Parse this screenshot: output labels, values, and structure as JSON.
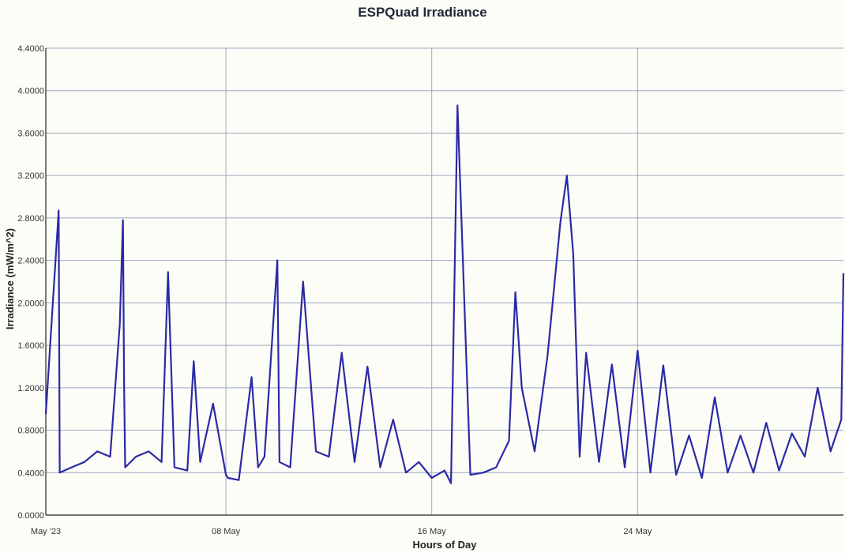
{
  "chart_data": {
    "type": "line",
    "title": "ESPQuad Irradiance",
    "xlabel": "Hours of Day",
    "ylabel": "Irradiance (mW/m^2)",
    "ylim": [
      0,
      4.4
    ],
    "y_ticks": [
      "0.0000",
      "0.4000",
      "0.8000",
      "1.2000",
      "1.6000",
      "2.0000",
      "2.4000",
      "2.8000",
      "3.2000",
      "3.6000",
      "4.0000",
      "4.4000"
    ],
    "x_range_days": [
      "2023-05-01",
      "2023-06-01"
    ],
    "x_ticks": [
      {
        "date": "2023-05-01",
        "label": "May '23"
      },
      {
        "date": "2023-05-08",
        "label": "08 May"
      },
      {
        "date": "2023-05-16",
        "label": "16 May"
      },
      {
        "date": "2023-05-24",
        "label": "24 May"
      }
    ],
    "grid": true,
    "legend": "none",
    "color": "#2a2aa6",
    "series": [
      {
        "x": [
          "2023-05-01",
          "2023-05-01T12:00",
          "2023-05-01T13:00",
          "2023-05-02",
          "2023-05-02T12:00",
          "2023-05-03",
          "2023-05-03T12:00",
          "2023-05-03T21:00",
          "2023-05-04",
          "2023-05-04T01:00",
          "2023-05-04T02:00",
          "2023-05-04T12:00",
          "2023-05-05",
          "2023-05-05T12:00",
          "2023-05-05T18:00",
          "2023-05-06",
          "2023-05-06T12:00",
          "2023-05-06T18:00",
          "2023-05-07",
          "2023-05-07T12:00",
          "2023-05-08",
          "2023-05-08T02:00",
          "2023-05-08T12:00",
          "2023-05-09",
          "2023-05-09T06:00",
          "2023-05-09T12:00",
          "2023-05-10",
          "2023-05-10T02:00",
          "2023-05-10T12:00",
          "2023-05-11",
          "2023-05-11T12:00",
          "2023-05-12",
          "2023-05-12T12:00",
          "2023-05-13",
          "2023-05-13T12:00",
          "2023-05-14",
          "2023-05-14T12:00",
          "2023-05-15",
          "2023-05-15T12:00",
          "2023-05-16",
          "2023-05-16T12:00",
          "2023-05-16T18:00",
          "2023-05-17",
          "2023-05-17T12:00",
          "2023-05-18",
          "2023-05-18T12:00",
          "2023-05-19",
          "2023-05-19T06:00",
          "2023-05-19T12:00",
          "2023-05-20",
          "2023-05-20T12:00",
          "2023-05-21",
          "2023-05-21T06:00",
          "2023-05-21T12:00",
          "2023-05-21T18:00",
          "2023-05-22",
          "2023-05-22T12:00",
          "2023-05-23",
          "2023-05-23T12:00",
          "2023-05-24",
          "2023-05-24T12:00",
          "2023-05-25",
          "2023-05-25T12:00",
          "2023-05-26",
          "2023-05-26T12:00",
          "2023-05-27",
          "2023-05-27T12:00",
          "2023-05-28",
          "2023-05-28T12:00",
          "2023-05-29",
          "2023-05-29T12:00",
          "2023-05-30",
          "2023-05-30T12:00",
          "2023-05-31",
          "2023-05-31T12:00",
          "2023-05-31T22:00",
          "2023-06-01"
        ],
        "y": [
          0.95,
          2.87,
          0.4,
          0.45,
          0.5,
          0.6,
          0.55,
          1.8,
          2.78,
          1.25,
          0.45,
          0.55,
          0.6,
          0.5,
          2.29,
          0.45,
          0.42,
          1.45,
          0.5,
          1.05,
          0.38,
          0.35,
          0.33,
          1.3,
          0.45,
          0.55,
          2.4,
          0.5,
          0.45,
          2.2,
          0.6,
          0.55,
          1.53,
          0.5,
          1.4,
          0.45,
          0.9,
          0.4,
          0.5,
          0.35,
          0.42,
          0.3,
          3.86,
          0.38,
          0.4,
          0.45,
          0.7,
          2.1,
          1.2,
          0.6,
          1.5,
          2.76,
          3.2,
          2.46,
          0.55,
          1.53,
          0.5,
          1.42,
          0.45,
          1.55,
          0.4,
          1.41,
          0.38,
          0.75,
          0.35,
          1.11,
          0.4,
          0.75,
          0.4,
          0.87,
          0.42,
          0.77,
          0.55,
          1.2,
          0.6,
          0.9,
          2.28
        ]
      }
    ]
  }
}
